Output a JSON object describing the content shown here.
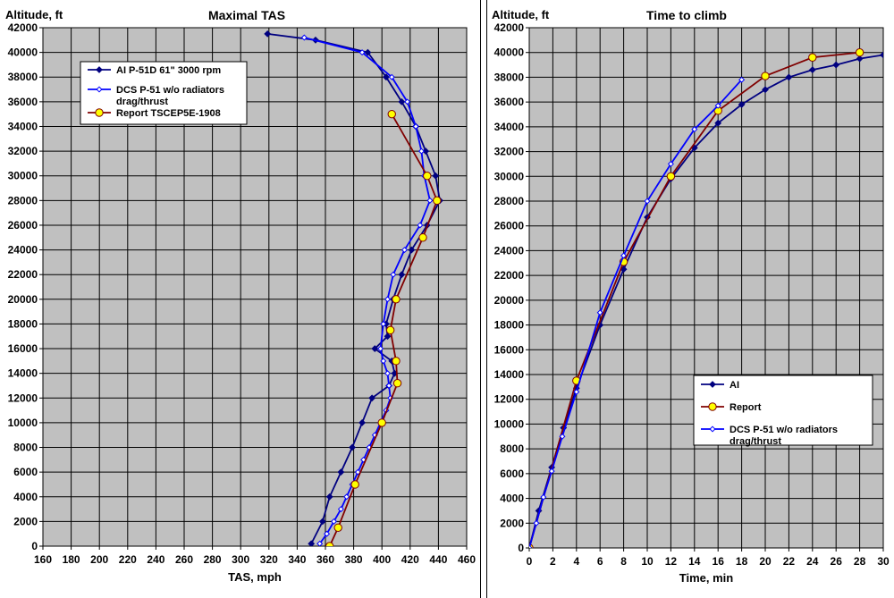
{
  "chart_data": [
    {
      "type": "line",
      "title": "Maximal TAS",
      "xlabel": "TAS, mph",
      "ylabel": "Altitude, ft",
      "xlim": [
        160,
        460
      ],
      "ylim": [
        0,
        42000
      ],
      "x_ticks": [
        "160",
        "180",
        "200",
        "220",
        "240",
        "260",
        "280",
        "300",
        "320",
        "340",
        "360",
        "380",
        "400",
        "420",
        "440",
        "460"
      ],
      "y_ticks": [
        "0",
        "2000",
        "4000",
        "6000",
        "8000",
        "10000",
        "12000",
        "14000",
        "16000",
        "18000",
        "20000",
        "22000",
        "24000",
        "26000",
        "28000",
        "30000",
        "32000",
        "34000",
        "36000",
        "38000",
        "40000",
        "42000"
      ],
      "grid": true,
      "legend_position": "top-left",
      "series": [
        {
          "name": "AI P-51D 61\" 3000 rpm",
          "color": "#000080",
          "marker": "diamond",
          "points": [
            [
              350,
              200
            ],
            [
              358,
              2000
            ],
            [
              363,
              4000
            ],
            [
              371,
              6000
            ],
            [
              379,
              8000
            ],
            [
              386,
              10000
            ],
            [
              393,
              12000
            ],
            [
              405,
              13000
            ],
            [
              409,
              14000
            ],
            [
              407,
              15000
            ],
            [
              395,
              16000
            ],
            [
              404,
              17000
            ],
            [
              403,
              18000
            ],
            [
              408,
              20000
            ],
            [
              414,
              22000
            ],
            [
              421,
              24000
            ],
            [
              432,
              26000
            ],
            [
              441,
              28000
            ],
            [
              438,
              30000
            ],
            [
              431,
              32000
            ],
            [
              424,
              34000
            ],
            [
              414,
              36000
            ],
            [
              403,
              38000
            ],
            [
              390,
              40000
            ],
            [
              353,
              41000
            ],
            [
              319,
              41500
            ]
          ]
        },
        {
          "name": "DCS P-51 w/o radiators drag/thrust",
          "color": "#0000ff",
          "marker": "open-diamond",
          "points": [
            [
              356,
              200
            ],
            [
              361,
              1000
            ],
            [
              366,
              2000
            ],
            [
              371,
              3000
            ],
            [
              375,
              4000
            ],
            [
              379,
              5000
            ],
            [
              383,
              6000
            ],
            [
              387,
              7000
            ],
            [
              391,
              8000
            ],
            [
              395,
              9000
            ],
            [
              399,
              10000
            ],
            [
              403,
              11000
            ],
            [
              406,
              12000
            ],
            [
              405,
              13000
            ],
            [
              404,
              14000
            ],
            [
              401,
              15000
            ],
            [
              399,
              16000
            ],
            [
              401,
              18000
            ],
            [
              404,
              20000
            ],
            [
              408,
              22000
            ],
            [
              416,
              24000
            ],
            [
              427,
              26000
            ],
            [
              434,
              28000
            ],
            [
              430,
              30000
            ],
            [
              428,
              32000
            ],
            [
              424,
              34000
            ],
            [
              418,
              36000
            ],
            [
              407,
              38000
            ],
            [
              386,
              40000
            ],
            [
              345,
              41200
            ]
          ]
        },
        {
          "name": "Report TSCEP5E-1908",
          "color": "#800000",
          "marker": "yellow-circle",
          "points": [
            [
              363,
              0
            ],
            [
              369,
              1500
            ],
            [
              381,
              5000
            ],
            [
              400,
              10000
            ],
            [
              411,
              13200
            ],
            [
              410,
              15000
            ],
            [
              406,
              17500
            ],
            [
              410,
              20000
            ],
            [
              429,
              25000
            ],
            [
              439,
              28000
            ],
            [
              432,
              30000
            ],
            [
              407,
              35000
            ]
          ]
        }
      ]
    },
    {
      "type": "line",
      "title": "Time to climb",
      "xlabel": "Time, min",
      "ylabel": "Altitude, ft",
      "xlim": [
        0,
        30
      ],
      "ylim": [
        0,
        42000
      ],
      "x_ticks": [
        "0",
        "2",
        "4",
        "6",
        "8",
        "10",
        "12",
        "14",
        "16",
        "18",
        "20",
        "22",
        "24",
        "26",
        "28",
        "30"
      ],
      "y_ticks": [
        "0",
        "2000",
        "4000",
        "6000",
        "8000",
        "10000",
        "12000",
        "14000",
        "16000",
        "18000",
        "20000",
        "22000",
        "24000",
        "26000",
        "28000",
        "30000",
        "32000",
        "34000",
        "36000",
        "38000",
        "40000",
        "42000"
      ],
      "grid": true,
      "legend_position": "bottom-right",
      "series": [
        {
          "name": "AI",
          "color": "#000080",
          "marker": "diamond",
          "points": [
            [
              0,
              0
            ],
            [
              0.8,
              3000
            ],
            [
              1.9,
              6500
            ],
            [
              2.9,
              9700
            ],
            [
              4,
              12900
            ],
            [
              6,
              18000
            ],
            [
              8,
              22500
            ],
            [
              10,
              26700
            ],
            [
              12,
              29800
            ],
            [
              14,
              32300
            ],
            [
              16,
              34300
            ],
            [
              18,
              35800
            ],
            [
              20,
              37000
            ],
            [
              22,
              38000
            ],
            [
              24,
              38600
            ],
            [
              26,
              39000
            ],
            [
              28,
              39500
            ],
            [
              30,
              39800
            ]
          ]
        },
        {
          "name": "Report",
          "color": "#800000",
          "marker": "yellow-circle",
          "points": [
            [
              0,
              0
            ],
            [
              4,
              13500
            ],
            [
              8,
              23100
            ],
            [
              12,
              30000
            ],
            [
              16,
              35300
            ],
            [
              20,
              38100
            ],
            [
              24,
              39600
            ],
            [
              28,
              40000
            ]
          ]
        },
        {
          "name": "DCS P-51 w/o radiators drag/thrust",
          "color": "#0000ff",
          "marker": "open-diamond",
          "points": [
            [
              0,
              0
            ],
            [
              0.6,
              2000
            ],
            [
              1.2,
              4100
            ],
            [
              1.9,
              6200
            ],
            [
              2.8,
              9000
            ],
            [
              4,
              12600
            ],
            [
              6,
              19000
            ],
            [
              8,
              23600
            ],
            [
              10,
              28000
            ],
            [
              12,
              31000
            ],
            [
              14,
              33800
            ],
            [
              16,
              35700
            ],
            [
              18,
              37800
            ]
          ]
        }
      ]
    }
  ]
}
